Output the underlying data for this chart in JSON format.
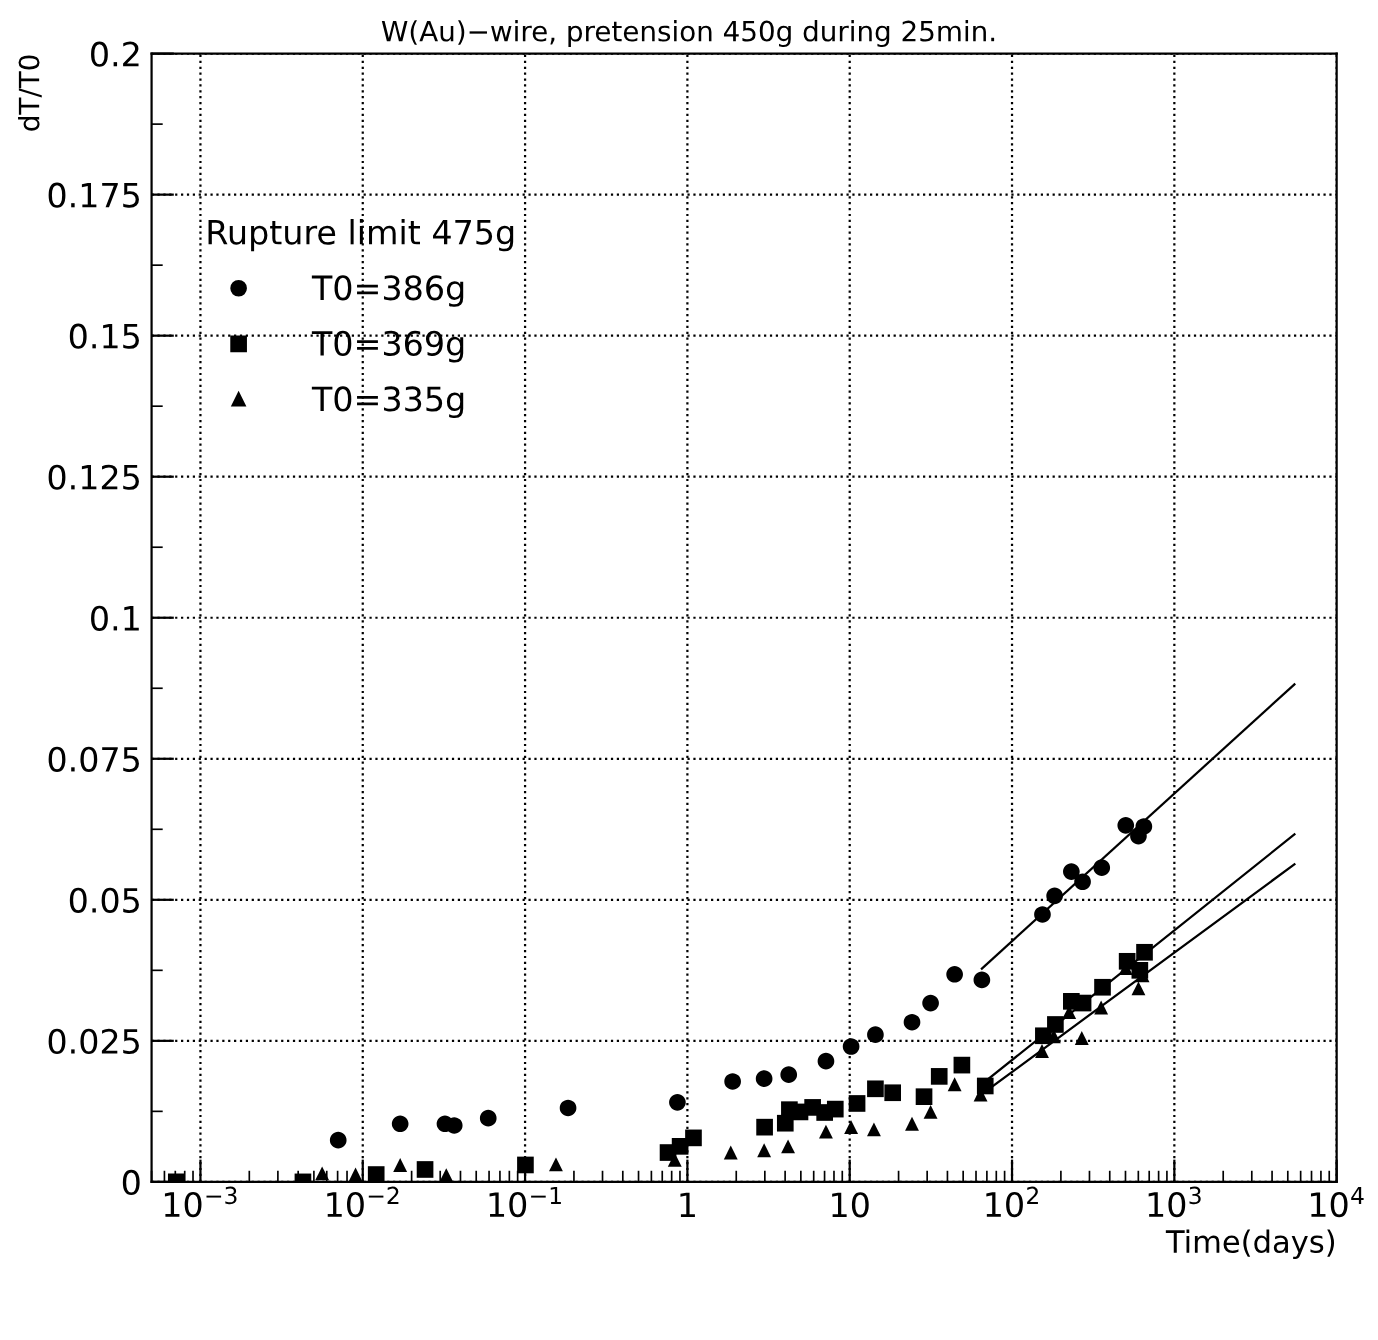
{
  "chart_data": {
    "type": "scatter",
    "title": "W(Au)−wire, pretension 450g during 25min.",
    "xlabel": "Time(days)",
    "ylabel": "dT/T0",
    "legend_title": "Rupture limit 475g",
    "log": "x",
    "grid": true,
    "legend": "top left",
    "xlim": [
      0.0005,
      10000
    ],
    "ylim": [
      0,
      0.2
    ],
    "xticks": [
      {
        "value": 0.001,
        "label": "10$^{−3}$"
      },
      {
        "value": 0.01,
        "label": "10$^{−2}$"
      },
      {
        "value": 0.1,
        "label": "10$^{−1}$"
      },
      1,
      10,
      {
        "value": 100,
        "label": "10$^{2}$"
      },
      {
        "value": 1000,
        "label": "10$^{3}$"
      },
      {
        "value": 10000,
        "label": "10$^{4}$"
      }
    ],
    "yticks": [
      0,
      0.025,
      0.05,
      0.075,
      0.1,
      0.125,
      0.15,
      0.175,
      0.2
    ],
    "series": [
      {
        "name": "T0=386g",
        "color": "#000000",
        "marker": "circle",
        "x": [
          0.00706,
          0.017,
          0.0321,
          0.0366,
          0.0593,
          0.184,
          0.868,
          1.9,
          2.97,
          4.21,
          7.14,
          10.2,
          14.4,
          24.2,
          31.5,
          44.3,
          65.2,
          154,
          183,
          232,
          272,
          357,
          502,
          601,
          649
        ],
        "values": [
          0.0074,
          0.0103,
          0.0103,
          0.01,
          0.0113,
          0.0131,
          0.0141,
          0.0178,
          0.0183,
          0.019,
          0.0214,
          0.024,
          0.0261,
          0.0283,
          0.0317,
          0.0368,
          0.0358,
          0.0474,
          0.0507,
          0.055,
          0.0532,
          0.0557,
          0.0632,
          0.0613,
          0.063
        ]
      },
      {
        "name": "T0=369g",
        "color": "#000000",
        "marker": "square",
        "x": [
          0.00071,
          0.00428,
          0.0121,
          0.0242,
          0.1005,
          0.76,
          0.902,
          1.09,
          2.99,
          4.01,
          4.25,
          4.94,
          5.91,
          7.01,
          8.15,
          11.1,
          14.4,
          18.4,
          28.7,
          35.6,
          49.1,
          68.4,
          156,
          185,
          232,
          274,
          361,
          512,
          613,
          655
        ],
        "values": [
          0.0,
          0.0,
          0.0013,
          0.0022,
          0.003,
          0.0052,
          0.0063,
          0.0078,
          0.0097,
          0.0104,
          0.0128,
          0.0124,
          0.0132,
          0.0123,
          0.0129,
          0.0139,
          0.0165,
          0.0158,
          0.0151,
          0.0187,
          0.0207,
          0.017,
          0.0259,
          0.0279,
          0.032,
          0.0317,
          0.0345,
          0.0391,
          0.0375,
          0.0407
        ]
      },
      {
        "name": "T0=335g",
        "color": "#000000",
        "marker": "triangle",
        "x": [
          0.00562,
          0.00903,
          0.017,
          0.0327,
          0.155,
          0.836,
          1.85,
          2.97,
          4.17,
          7.14,
          10.2,
          14.1,
          24.2,
          31.5,
          44.3,
          64.0,
          153,
          181,
          225,
          269,
          354,
          502,
          601,
          637
        ],
        "values": [
          0.0015,
          0.0013,
          0.003,
          0.0012,
          0.0031,
          0.0039,
          0.0052,
          0.0056,
          0.0063,
          0.0089,
          0.0097,
          0.0093,
          0.0103,
          0.0124,
          0.0173,
          0.0155,
          0.0232,
          0.0258,
          0.0301,
          0.0255,
          0.0309,
          0.0379,
          0.0343,
          0.0366
        ]
      },
      {
        "type": "line",
        "color": "#000000",
        "marker": "none",
        "line_style": "solid",
        "x": [
          65.2,
          5495
        ],
        "values": [
          0.0378,
          0.0882
        ]
      },
      {
        "type": "line",
        "color": "#000000",
        "marker": "none",
        "line_style": "solid",
        "x": [
          68.4,
          5495
        ],
        "values": [
          0.0178,
          0.0616
        ]
      },
      {
        "type": "line",
        "color": "#000000",
        "marker": "none",
        "line_style": "solid",
        "x": [
          68.4,
          5495
        ],
        "values": [
          0.016,
          0.0563
        ]
      }
    ]
  }
}
